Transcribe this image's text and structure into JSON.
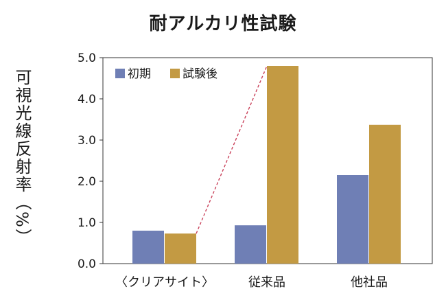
{
  "chart_data": {
    "type": "bar",
    "title": "耐アルカリ性試験",
    "ylabel": "可視光線反射率（%）",
    "xlabel": "",
    "categories": [
      "〈クリアサイト〉",
      "従来品",
      "他社品"
    ],
    "series": [
      {
        "name": "初期",
        "values": [
          0.8,
          0.93,
          2.15
        ],
        "color": "#6f7fb5"
      },
      {
        "name": "試験後",
        "values": [
          0.73,
          4.8,
          3.37
        ],
        "color": "#c39a43"
      }
    ],
    "ylim": [
      0,
      5.0
    ],
    "yticks": [
      "0.0",
      "1.0",
      "2.0",
      "3.0",
      "4.0",
      "5.0"
    ],
    "legend": "top-left",
    "annotation": "dashed red line from クリアサイト after-test bar to 従来品 after-test bar",
    "grid": false
  }
}
